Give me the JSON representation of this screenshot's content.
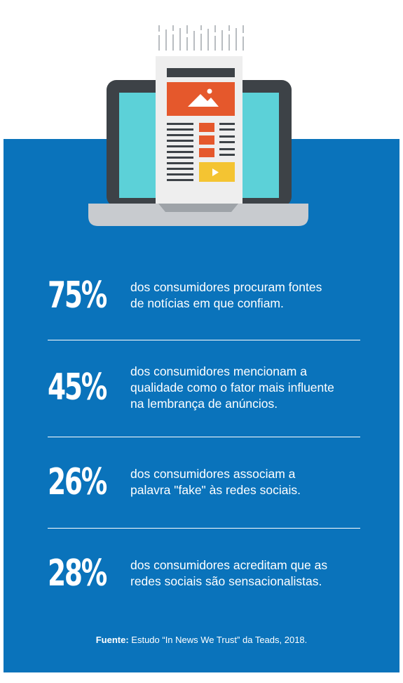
{
  "colors": {
    "panel": "#0a73bb",
    "laptop_frame": "#3d4247",
    "laptop_screen": "#5cd1d8",
    "laptop_base": "#c8cbcf",
    "paper": "#eeeeee",
    "accent_orange": "#e5582c",
    "accent_yellow": "#f4c432"
  },
  "illustration": {
    "icon": "laptop-newspaper-icon"
  },
  "stats": [
    {
      "value": "75%",
      "lines": [
        "dos consumidores procuram fontes",
        "de notícias em que confiam."
      ]
    },
    {
      "value": "45%",
      "lines": [
        "dos consumidores mencionam a",
        "qualidade como o fator mais influente",
        "na lembrança de anúncios."
      ]
    },
    {
      "value": "26%",
      "lines": [
        "dos consumidores associam a",
        "palavra \"fake\" às redes sociais."
      ]
    },
    {
      "value": "28%",
      "lines": [
        "dos consumidores acreditam que as",
        "redes sociais são sensacionalistas."
      ]
    }
  ],
  "source": {
    "label": "Fuente:",
    "text": " Estudo “In News We Trust” da Teads, 2018."
  }
}
